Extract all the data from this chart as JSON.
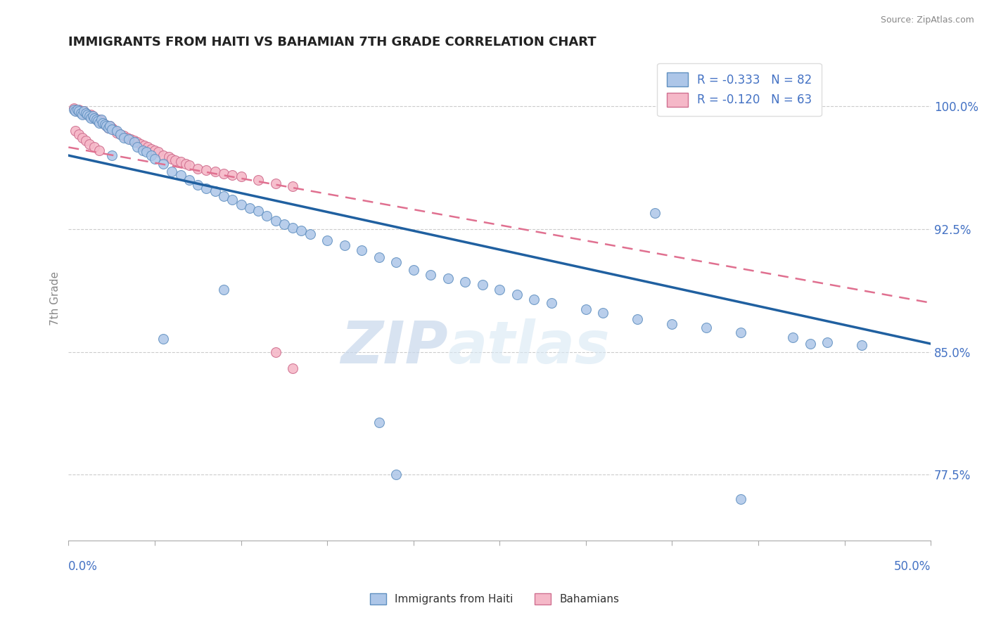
{
  "title": "IMMIGRANTS FROM HAITI VS BAHAMIAN 7TH GRADE CORRELATION CHART",
  "source_text": "Source: ZipAtlas.com",
  "ylabel": "7th Grade",
  "ytick_labels": [
    "77.5%",
    "85.0%",
    "92.5%",
    "100.0%"
  ],
  "ytick_values": [
    0.775,
    0.85,
    0.925,
    1.0
  ],
  "xlim": [
    0.0,
    0.5
  ],
  "ylim": [
    0.735,
    1.03
  ],
  "legend_blue_label": "R = -0.333   N = 82",
  "legend_pink_label": "R = -0.120   N = 63",
  "blue_color": "#adc6e8",
  "pink_color": "#f5b8c8",
  "blue_line_color": "#2060a0",
  "pink_line_color": "#e07090",
  "watermark_zip": "ZIP",
  "watermark_atlas": "atlas",
  "blue_scatter_x": [
    0.003,
    0.004,
    0.005,
    0.006,
    0.007,
    0.008,
    0.009,
    0.01,
    0.011,
    0.012,
    0.013,
    0.014,
    0.015,
    0.016,
    0.017,
    0.018,
    0.019,
    0.02,
    0.021,
    0.022,
    0.023,
    0.024,
    0.025,
    0.028,
    0.03,
    0.032,
    0.035,
    0.038,
    0.04,
    0.043,
    0.045,
    0.048,
    0.05,
    0.055,
    0.06,
    0.065,
    0.07,
    0.075,
    0.08,
    0.085,
    0.09,
    0.095,
    0.1,
    0.105,
    0.11,
    0.115,
    0.12,
    0.125,
    0.13,
    0.135,
    0.14,
    0.15,
    0.16,
    0.17,
    0.18,
    0.19,
    0.2,
    0.21,
    0.22,
    0.23,
    0.24,
    0.25,
    0.26,
    0.27,
    0.28,
    0.3,
    0.31,
    0.33,
    0.35,
    0.37,
    0.39,
    0.42,
    0.44,
    0.46,
    0.34,
    0.18,
    0.09,
    0.055,
    0.025,
    0.19,
    0.39,
    0.43
  ],
  "blue_scatter_y": [
    0.998,
    0.997,
    0.998,
    0.997,
    0.996,
    0.995,
    0.997,
    0.996,
    0.995,
    0.994,
    0.993,
    0.994,
    0.993,
    0.992,
    0.991,
    0.99,
    0.992,
    0.99,
    0.989,
    0.988,
    0.987,
    0.988,
    0.986,
    0.985,
    0.983,
    0.981,
    0.98,
    0.978,
    0.975,
    0.973,
    0.972,
    0.97,
    0.968,
    0.965,
    0.96,
    0.958,
    0.955,
    0.952,
    0.95,
    0.948,
    0.945,
    0.943,
    0.94,
    0.938,
    0.936,
    0.933,
    0.93,
    0.928,
    0.926,
    0.924,
    0.922,
    0.918,
    0.915,
    0.912,
    0.908,
    0.905,
    0.9,
    0.897,
    0.895,
    0.893,
    0.891,
    0.888,
    0.885,
    0.882,
    0.88,
    0.876,
    0.874,
    0.87,
    0.867,
    0.865,
    0.862,
    0.859,
    0.856,
    0.854,
    0.935,
    0.807,
    0.888,
    0.858,
    0.97,
    0.775,
    0.76,
    0.855
  ],
  "pink_scatter_x": [
    0.003,
    0.004,
    0.005,
    0.006,
    0.007,
    0.008,
    0.009,
    0.01,
    0.011,
    0.012,
    0.013,
    0.014,
    0.015,
    0.016,
    0.017,
    0.018,
    0.019,
    0.02,
    0.021,
    0.022,
    0.023,
    0.024,
    0.025,
    0.026,
    0.027,
    0.028,
    0.03,
    0.032,
    0.034,
    0.036,
    0.038,
    0.04,
    0.042,
    0.044,
    0.046,
    0.048,
    0.05,
    0.052,
    0.055,
    0.058,
    0.06,
    0.062,
    0.065,
    0.068,
    0.07,
    0.075,
    0.08,
    0.085,
    0.09,
    0.095,
    0.1,
    0.11,
    0.12,
    0.13,
    0.004,
    0.006,
    0.008,
    0.01,
    0.012,
    0.015,
    0.018,
    0.12,
    0.13
  ],
  "pink_scatter_y": [
    0.999,
    0.998,
    0.997,
    0.998,
    0.997,
    0.996,
    0.997,
    0.996,
    0.995,
    0.994,
    0.995,
    0.994,
    0.993,
    0.992,
    0.991,
    0.992,
    0.991,
    0.99,
    0.989,
    0.988,
    0.987,
    0.988,
    0.987,
    0.986,
    0.985,
    0.984,
    0.983,
    0.982,
    0.981,
    0.98,
    0.979,
    0.978,
    0.977,
    0.976,
    0.975,
    0.974,
    0.973,
    0.972,
    0.97,
    0.969,
    0.968,
    0.967,
    0.966,
    0.965,
    0.964,
    0.962,
    0.961,
    0.96,
    0.959,
    0.958,
    0.957,
    0.955,
    0.953,
    0.951,
    0.985,
    0.983,
    0.981,
    0.979,
    0.977,
    0.975,
    0.973,
    0.85,
    0.84
  ]
}
